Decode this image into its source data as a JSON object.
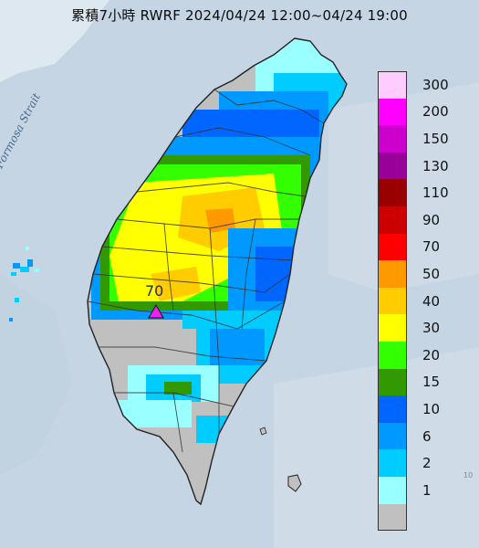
{
  "map": {
    "title": "累積7小時 RWRF 2024/04/24 12:00~04/24 19:00",
    "water_label": "Formosa Strait",
    "max_label": "70",
    "corner_text": "10"
  },
  "legend": {
    "entries": [
      {
        "label": "300",
        "color": "#ffccff"
      },
      {
        "label": "200",
        "color": "#ff00ff"
      },
      {
        "label": "150",
        "color": "#cc00cc"
      },
      {
        "label": "130",
        "color": "#990099"
      },
      {
        "label": "110",
        "color": "#990000"
      },
      {
        "label": "90",
        "color": "#cc0000"
      },
      {
        "label": "70",
        "color": "#ff0000"
      },
      {
        "label": "50",
        "color": "#ff9900"
      },
      {
        "label": "40",
        "color": "#ffcc00"
      },
      {
        "label": "30",
        "color": "#ffff00"
      },
      {
        "label": "20",
        "color": "#33ff00"
      },
      {
        "label": "15",
        "color": "#339900"
      },
      {
        "label": "10",
        "color": "#0066ff"
      },
      {
        "label": "6",
        "color": "#0099ff"
      },
      {
        "label": "2",
        "color": "#00ccff"
      },
      {
        "label": "1",
        "color": "#99ffff"
      },
      {
        "label": "",
        "color": "#c0c0c0"
      }
    ]
  }
}
